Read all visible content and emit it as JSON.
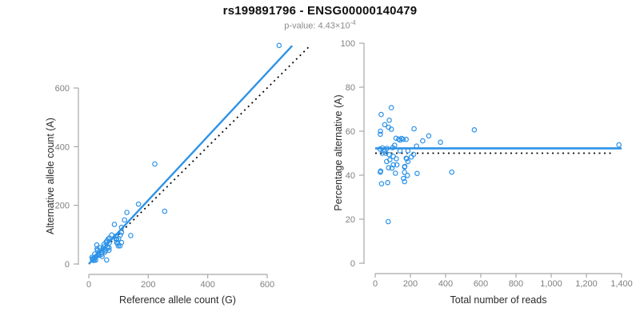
{
  "title": "rs199891796 - ENSG00000140479",
  "subtitle": {
    "base": "p-value: 4.43×10",
    "exponent": "-4"
  },
  "colors": {
    "accent_blue": "#2E93E8",
    "identity_black": "#0a0a0a",
    "axis_line": "#a8a8a8",
    "tick_label": "#7f7f7f",
    "axis_title": "#2b2b2b",
    "title": "#111111",
    "subtitle": "#8b8b8b"
  },
  "chart_data": [
    {
      "type": "scatter",
      "title": "",
      "xlabel": "Reference allele count (G)",
      "ylabel": "Alternative allele count (A)",
      "xlim": [
        0,
        750
      ],
      "ylim": [
        0,
        760
      ],
      "grid": false,
      "xticks": {
        "values": [
          0,
          200,
          400,
          600
        ],
        "labels": [
          "0",
          "200",
          "400",
          "600"
        ]
      },
      "yticks": {
        "values": [
          0,
          200,
          400,
          600
        ],
        "labels": [
          "0",
          "200",
          "400",
          "600"
        ]
      },
      "lines": [
        {
          "name": "identity-line",
          "style": "dotted",
          "color": "#0a0a0a",
          "width": 1.8,
          "from": [
            0,
            0
          ],
          "to": [
            742,
            742
          ]
        },
        {
          "name": "fit-line",
          "style": "solid",
          "color": "#2E93E8",
          "width": 2.4,
          "from": [
            0,
            0
          ],
          "to": [
            684,
            744
          ]
        }
      ],
      "points": [
        [
          27,
          65
        ],
        [
          11,
          23
        ],
        [
          28,
          52
        ],
        [
          20,
          34
        ],
        [
          29,
          47
        ],
        [
          36,
          56
        ],
        [
          12,
          18
        ],
        [
          12,
          17
        ],
        [
          86,
          135
        ],
        [
          222,
          341
        ],
        [
          128,
          176
        ],
        [
          51,
          67
        ],
        [
          58,
          75
        ],
        [
          62,
          79
        ],
        [
          65,
          85
        ],
        [
          69,
          89
        ],
        [
          77,
          99
        ],
        [
          120,
          150
        ],
        [
          167,
          204
        ],
        [
          110,
          125
        ],
        [
          91,
          95
        ],
        [
          110,
          108
        ],
        [
          92,
          84
        ],
        [
          94,
          73
        ],
        [
          141,
          97
        ],
        [
          255,
          180
        ],
        [
          69,
          72
        ],
        [
          51,
          59
        ],
        [
          47,
          52
        ],
        [
          32,
          35
        ],
        [
          13,
          14
        ],
        [
          20,
          22
        ],
        [
          25,
          26
        ],
        [
          20,
          20
        ],
        [
          30,
          30
        ],
        [
          40,
          39
        ],
        [
          53,
          50
        ],
        [
          63,
          57
        ],
        [
          44,
          39
        ],
        [
          35,
          30
        ],
        [
          57,
          46
        ],
        [
          68,
          55
        ],
        [
          94,
          85
        ],
        [
          100,
          86
        ],
        [
          106,
          99
        ],
        [
          43,
          33
        ],
        [
          54,
          41
        ],
        [
          18,
          13
        ],
        [
          17,
          12
        ],
        [
          94,
          74
        ],
        [
          98,
          69
        ],
        [
          68,
          47
        ],
        [
          110,
          73
        ],
        [
          99,
          62
        ],
        [
          105,
          62
        ],
        [
          45,
          26
        ],
        [
          23,
          13
        ],
        [
          60,
          14
        ],
        [
          640,
          745
        ]
      ]
    },
    {
      "type": "scatter",
      "title": "",
      "xlabel": "Total number of reads",
      "ylabel": "Percentage alternative (A)",
      "xlim": [
        0,
        1400
      ],
      "ylim": [
        0,
        100
      ],
      "grid": false,
      "xticks": {
        "values": [
          0,
          200,
          400,
          600,
          800,
          1000,
          1200,
          1400
        ],
        "labels": [
          "0",
          "200",
          "400",
          "600",
          "800",
          "1,000",
          "1,200",
          "1,400"
        ]
      },
      "yticks": {
        "values": [
          0,
          20,
          40,
          60,
          80,
          100
        ],
        "labels": [
          "0",
          "20",
          "40",
          "60",
          "80",
          "100"
        ]
      },
      "lines": [
        {
          "name": "expected-50-line",
          "style": "dotted",
          "color": "#0a0a0a",
          "width": 1.8,
          "from": [
            0,
            50
          ],
          "to": [
            1350,
            50
          ]
        },
        {
          "name": "mean-percentage-line",
          "style": "solid",
          "color": "#2E93E8",
          "width": 2.6,
          "from": [
            0,
            52.2
          ],
          "to": [
            1400,
            52.2
          ]
        }
      ],
      "points": [
        [
          92,
          70.7
        ],
        [
          34,
          67.6
        ],
        [
          80,
          65.0
        ],
        [
          54,
          63.0
        ],
        [
          76,
          61.8
        ],
        [
          92,
          60.9
        ],
        [
          30,
          60.0
        ],
        [
          29,
          58.6
        ],
        [
          221,
          61.1
        ],
        [
          563,
          60.6
        ],
        [
          304,
          57.9
        ],
        [
          118,
          56.8
        ],
        [
          133,
          56.4
        ],
        [
          141,
          56.0
        ],
        [
          150,
          56.7
        ],
        [
          158,
          56.3
        ],
        [
          176,
          56.3
        ],
        [
          270,
          55.6
        ],
        [
          371,
          55.0
        ],
        [
          235,
          53.2
        ],
        [
          186,
          51.1
        ],
        [
          218,
          49.5
        ],
        [
          176,
          47.7
        ],
        [
          167,
          43.7
        ],
        [
          238,
          40.8
        ],
        [
          435,
          41.4
        ],
        [
          141,
          51.1
        ],
        [
          110,
          53.6
        ],
        [
          99,
          52.5
        ],
        [
          67,
          52.2
        ],
        [
          27,
          51.9
        ],
        [
          42,
          52.4
        ],
        [
          51,
          51.0
        ],
        [
          40,
          50.0
        ],
        [
          60,
          50.0
        ],
        [
          79,
          49.4
        ],
        [
          103,
          48.5
        ],
        [
          120,
          47.5
        ],
        [
          83,
          47.0
        ],
        [
          65,
          46.2
        ],
        [
          103,
          44.7
        ],
        [
          123,
          44.7
        ],
        [
          179,
          47.5
        ],
        [
          186,
          46.2
        ],
        [
          205,
          48.3
        ],
        [
          76,
          43.4
        ],
        [
          95,
          43.2
        ],
        [
          31,
          41.9
        ],
        [
          29,
          41.4
        ],
        [
          168,
          44.0
        ],
        [
          167,
          41.3
        ],
        [
          115,
          40.9
        ],
        [
          183,
          39.9
        ],
        [
          161,
          38.5
        ],
        [
          167,
          37.1
        ],
        [
          71,
          36.6
        ],
        [
          36,
          36.1
        ],
        [
          74,
          18.9
        ],
        [
          1385,
          53.8
        ]
      ]
    }
  ]
}
